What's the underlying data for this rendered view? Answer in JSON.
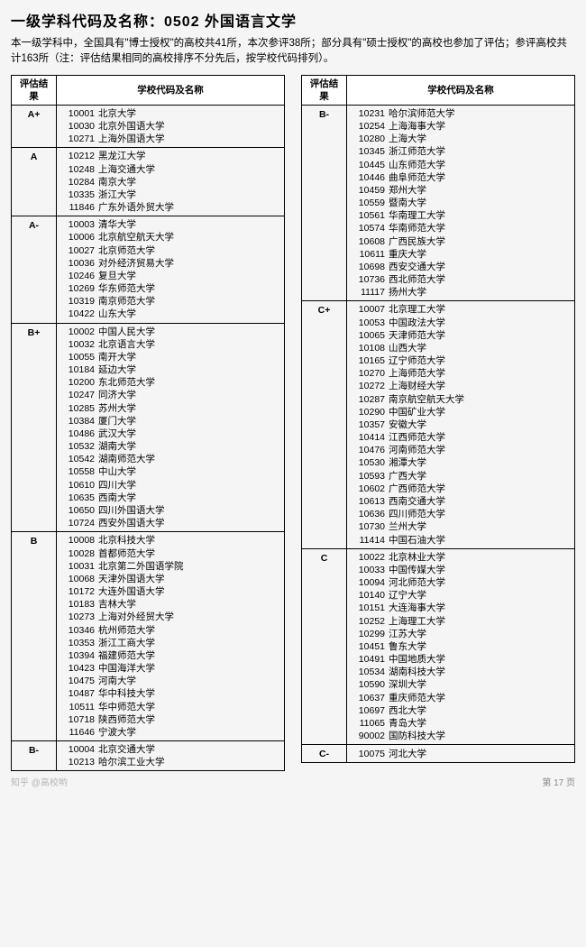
{
  "title": "一级学科代码及名称：0502 外国语言文学",
  "intro": "本一级学科中，全国具有\"博士授权\"的高校共41所，本次参评38所；部分具有\"硕士授权\"的高校也参加了评估；参评高校共计163所（注：评估结果相同的高校排序不分先后，按学校代码排列）。",
  "headers": {
    "grade": "评估结果",
    "school": "学校代码及名称"
  },
  "page": "第 17 页",
  "watermark": "知乎 @高校哟",
  "left": [
    {
      "grade": "A+",
      "items": [
        [
          "10001",
          "北京大学"
        ],
        [
          "10030",
          "北京外国语大学"
        ],
        [
          "10271",
          "上海外国语大学"
        ]
      ]
    },
    {
      "grade": "A",
      "items": [
        [
          "10212",
          "黑龙江大学"
        ],
        [
          "10248",
          "上海交通大学"
        ],
        [
          "10284",
          "南京大学"
        ],
        [
          "10335",
          "浙江大学"
        ],
        [
          "11846",
          "广东外语外贸大学"
        ]
      ]
    },
    {
      "grade": "A-",
      "items": [
        [
          "10003",
          "清华大学"
        ],
        [
          "10006",
          "北京航空航天大学"
        ],
        [
          "10027",
          "北京师范大学"
        ],
        [
          "10036",
          "对外经济贸易大学"
        ],
        [
          "10246",
          "复旦大学"
        ],
        [
          "10269",
          "华东师范大学"
        ],
        [
          "10319",
          "南京师范大学"
        ],
        [
          "10422",
          "山东大学"
        ]
      ]
    },
    {
      "grade": "B+",
      "items": [
        [
          "10002",
          "中国人民大学"
        ],
        [
          "10032",
          "北京语言大学"
        ],
        [
          "10055",
          "南开大学"
        ],
        [
          "10184",
          "延边大学"
        ],
        [
          "10200",
          "东北师范大学"
        ],
        [
          "10247",
          "同济大学"
        ],
        [
          "10285",
          "苏州大学"
        ],
        [
          "10384",
          "厦门大学"
        ],
        [
          "10486",
          "武汉大学"
        ],
        [
          "10532",
          "湖南大学"
        ],
        [
          "10542",
          "湖南师范大学"
        ],
        [
          "10558",
          "中山大学"
        ],
        [
          "10610",
          "四川大学"
        ],
        [
          "10635",
          "西南大学"
        ],
        [
          "10650",
          "四川外国语大学"
        ],
        [
          "10724",
          "西安外国语大学"
        ]
      ]
    },
    {
      "grade": "B",
      "items": [
        [
          "10008",
          "北京科技大学"
        ],
        [
          "10028",
          "首都师范大学"
        ],
        [
          "10031",
          "北京第二外国语学院"
        ],
        [
          "10068",
          "天津外国语大学"
        ],
        [
          "10172",
          "大连外国语大学"
        ],
        [
          "10183",
          "吉林大学"
        ],
        [
          "10273",
          "上海对外经贸大学"
        ],
        [
          "10346",
          "杭州师范大学"
        ],
        [
          "10353",
          "浙江工商大学"
        ],
        [
          "10394",
          "福建师范大学"
        ],
        [
          "10423",
          "中国海洋大学"
        ],
        [
          "10475",
          "河南大学"
        ],
        [
          "10487",
          "华中科技大学"
        ],
        [
          "10511",
          "华中师范大学"
        ],
        [
          "10718",
          "陕西师范大学"
        ],
        [
          "11646",
          "宁波大学"
        ]
      ]
    },
    {
      "grade": "B-",
      "items": [
        [
          "10004",
          "北京交通大学"
        ],
        [
          "10213",
          "哈尔滨工业大学"
        ]
      ]
    }
  ],
  "right": [
    {
      "grade": "B-",
      "items": [
        [
          "10231",
          "哈尔滨师范大学"
        ],
        [
          "10254",
          "上海海事大学"
        ],
        [
          "10280",
          "上海大学"
        ],
        [
          "10345",
          "浙江师范大学"
        ],
        [
          "10445",
          "山东师范大学"
        ],
        [
          "10446",
          "曲阜师范大学"
        ],
        [
          "10459",
          "郑州大学"
        ],
        [
          "10559",
          "暨南大学"
        ],
        [
          "10561",
          "华南理工大学"
        ],
        [
          "10574",
          "华南师范大学"
        ],
        [
          "10608",
          "广西民族大学"
        ],
        [
          "10611",
          "重庆大学"
        ],
        [
          "10698",
          "西安交通大学"
        ],
        [
          "10736",
          "西北师范大学"
        ],
        [
          "11117",
          "扬州大学"
        ]
      ]
    },
    {
      "grade": "C+",
      "items": [
        [
          "10007",
          "北京理工大学"
        ],
        [
          "10053",
          "中国政法大学"
        ],
        [
          "10065",
          "天津师范大学"
        ],
        [
          "10108",
          "山西大学"
        ],
        [
          "10165",
          "辽宁师范大学"
        ],
        [
          "10270",
          "上海师范大学"
        ],
        [
          "10272",
          "上海财经大学"
        ],
        [
          "10287",
          "南京航空航天大学"
        ],
        [
          "10290",
          "中国矿业大学"
        ],
        [
          "10357",
          "安徽大学"
        ],
        [
          "10414",
          "江西师范大学"
        ],
        [
          "10476",
          "河南师范大学"
        ],
        [
          "10530",
          "湘潭大学"
        ],
        [
          "10593",
          "广西大学"
        ],
        [
          "10602",
          "广西师范大学"
        ],
        [
          "10613",
          "西南交通大学"
        ],
        [
          "10636",
          "四川师范大学"
        ],
        [
          "10730",
          "兰州大学"
        ],
        [
          "11414",
          "中国石油大学"
        ]
      ]
    },
    {
      "grade": "C",
      "items": [
        [
          "10022",
          "北京林业大学"
        ],
        [
          "10033",
          "中国传媒大学"
        ],
        [
          "10094",
          "河北师范大学"
        ],
        [
          "10140",
          "辽宁大学"
        ],
        [
          "10151",
          "大连海事大学"
        ],
        [
          "10252",
          "上海理工大学"
        ],
        [
          "10299",
          "江苏大学"
        ],
        [
          "10451",
          "鲁东大学"
        ],
        [
          "10491",
          "中国地质大学"
        ],
        [
          "10534",
          "湖南科技大学"
        ],
        [
          "10590",
          "深圳大学"
        ],
        [
          "10637",
          "重庆师范大学"
        ],
        [
          "10697",
          "西北大学"
        ],
        [
          "11065",
          "青岛大学"
        ],
        [
          "90002",
          "国防科技大学"
        ]
      ]
    },
    {
      "grade": "C-",
      "items": [
        [
          "10075",
          "河北大学"
        ]
      ]
    }
  ]
}
